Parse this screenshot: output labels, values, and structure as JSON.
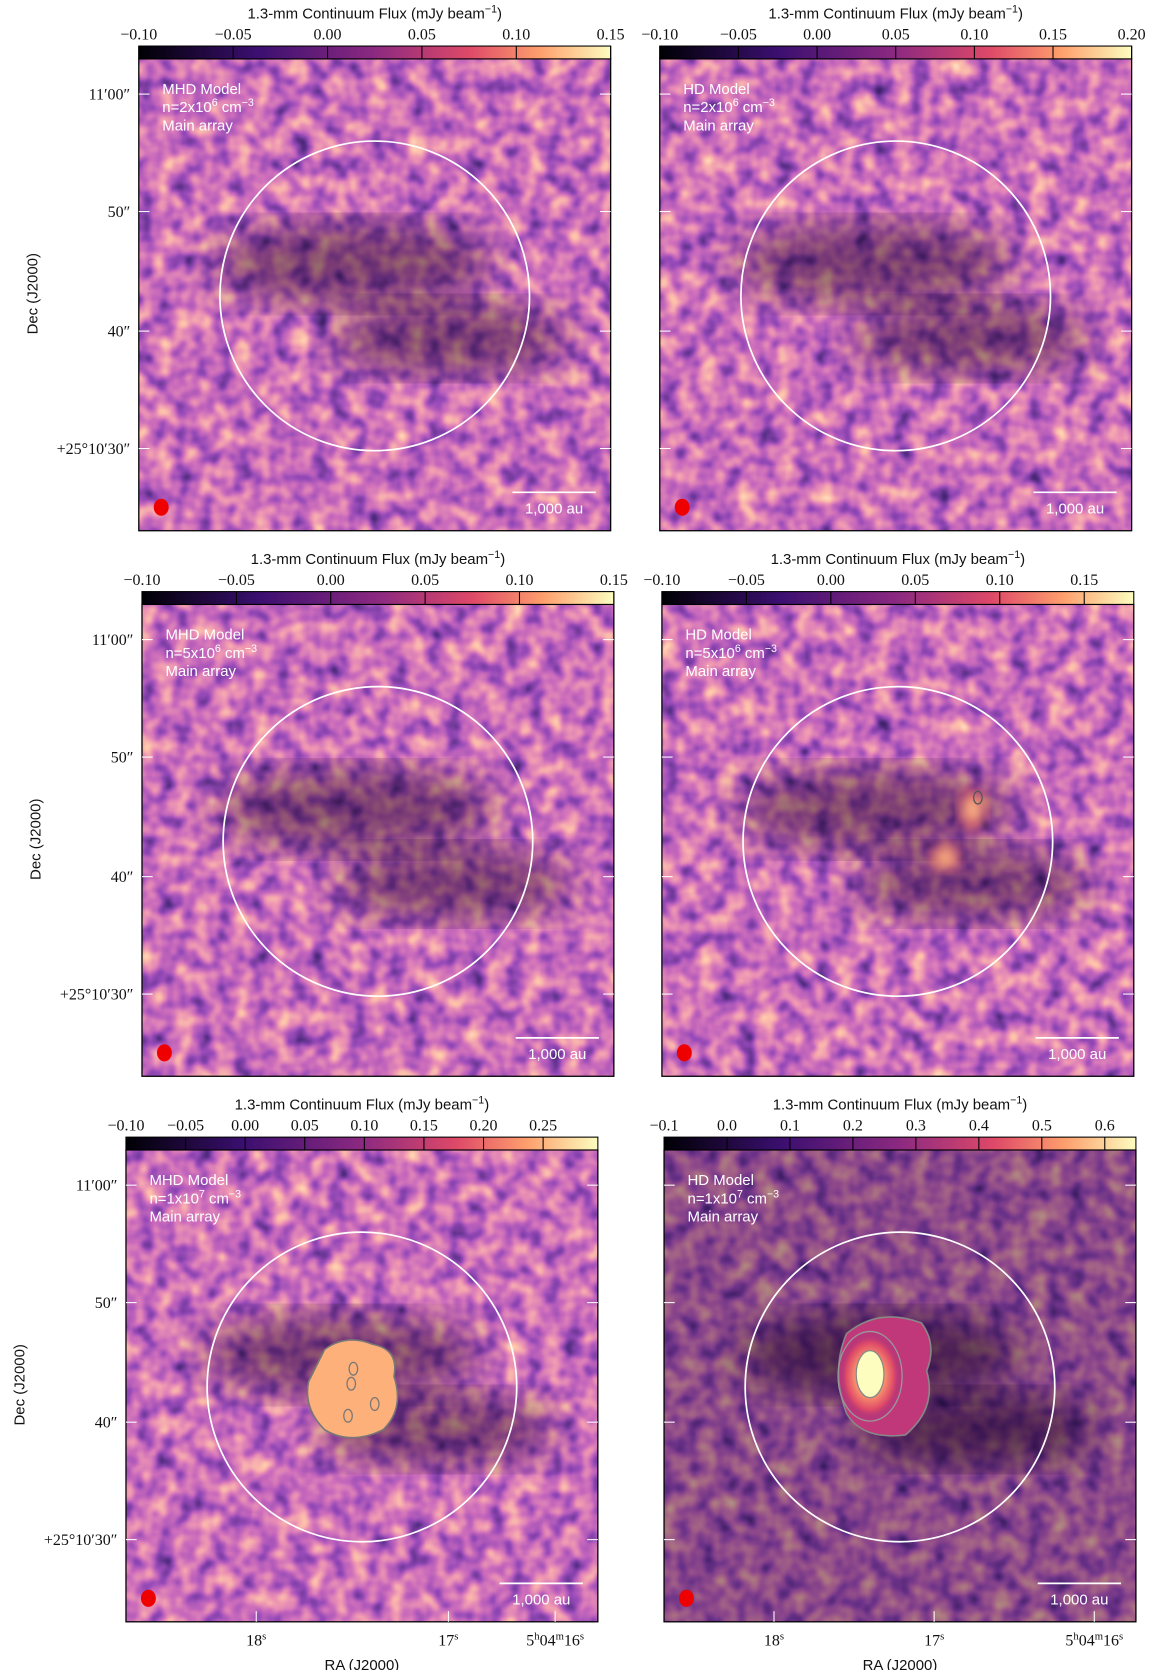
{
  "axes": {
    "y_label": "Dec (J2000)",
    "x_label": "RA (J2000)",
    "y_ticks": [
      "11′00″",
      "50″",
      "40″",
      "+25°10′30″"
    ],
    "x_ticks": [
      [
        "18",
        "s"
      ],
      [
        "17",
        "s"
      ],
      [
        "5",
        "h",
        "04",
        "m",
        "16",
        "s"
      ]
    ]
  },
  "panels": [
    {
      "colorbar_label": [
        "1.3-mm Continuum Flux (mJy beam",
        "−1",
        ")"
      ],
      "colorbar_ticks": [
        "−0.10",
        "−0.05",
        "0.00",
        "0.05",
        "0.10",
        "0.15"
      ],
      "model": "MHD Model",
      "density": [
        "n=2x10",
        "6",
        " cm",
        "−3"
      ],
      "array": "Main array",
      "scale_bar": "1,000 au"
    },
    {
      "colorbar_label": [
        "1.3-mm Continuum Flux (mJy beam",
        "−1",
        ")"
      ],
      "colorbar_ticks": [
        "−0.10",
        "−0.05",
        "0.00",
        "0.05",
        "0.10",
        "0.15",
        "0.20"
      ],
      "model": "HD Model",
      "density": [
        "n=2x10",
        "6",
        " cm",
        "−3"
      ],
      "array": "Main array",
      "scale_bar": "1,000 au"
    },
    {
      "colorbar_label": [
        "1.3-mm Continuum Flux (mJy beam",
        "−1",
        ")"
      ],
      "colorbar_ticks": [
        "−0.10",
        "−0.05",
        "0.00",
        "0.05",
        "0.10",
        "0.15"
      ],
      "model": "MHD Model",
      "density": [
        "n=5x10",
        "6",
        " cm",
        "−3"
      ],
      "array": "Main array",
      "scale_bar": "1,000 au"
    },
    {
      "colorbar_label": [
        "1.3-mm Continuum Flux (mJy beam",
        "−1",
        ")"
      ],
      "colorbar_ticks": [
        "−0.10",
        "−0.05",
        "0.00",
        "0.05",
        "0.10",
        "0.15"
      ],
      "model": "HD Model",
      "density": [
        "n=5x10",
        "6",
        " cm",
        "−3"
      ],
      "array": "Main array",
      "scale_bar": "1,000 au"
    },
    {
      "colorbar_label": [
        "1.3-mm Continuum Flux (mJy beam",
        "−1",
        ")"
      ],
      "colorbar_ticks": [
        "−0.10",
        "−0.05",
        "0.00",
        "0.05",
        "0.10",
        "0.15",
        "0.20",
        "0.25"
      ],
      "model": "MHD Model",
      "density": [
        "n=1x10",
        "7",
        " cm",
        "−3"
      ],
      "array": "Main array",
      "scale_bar": "1,000 au"
    },
    {
      "colorbar_label": [
        "1.3-mm Continuum Flux (mJy beam",
        "−1",
        ")"
      ],
      "colorbar_ticks": [
        "−0.1",
        "0.0",
        "0.1",
        "0.2",
        "0.3",
        "0.4",
        "0.5",
        "0.6"
      ],
      "model": "HD Model",
      "density": [
        "n=1x10",
        "7",
        " cm",
        "−3"
      ],
      "array": "Main array",
      "scale_bar": "1,000 au"
    }
  ]
}
